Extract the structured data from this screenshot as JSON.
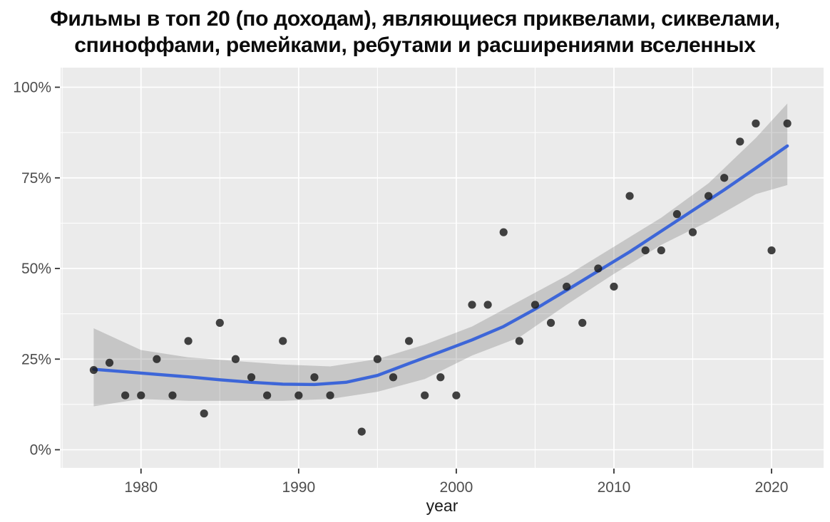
{
  "header": {
    "lines": [
      "Фильмы в топ 20 (по доходам), являющиеся приквелами, сиквелами,",
      "спиноффами, ремейками, ребутами и расширениями вселенных"
    ]
  },
  "chart_data": {
    "type": "scatter",
    "title": "Фильмы в топ 20 (по доходам), являющиеся приквелами, сиквелами, спиноффами, ремейками, ребутами и расширениями вселенных",
    "xlabel": "year",
    "ylabel": "",
    "xlim": [
      1974.9,
      2023.3
    ],
    "ylim": [
      -5,
      105.4
    ],
    "grid": true,
    "legend": "none",
    "x_ticks": [
      1980,
      1990,
      2000,
      2010,
      2020
    ],
    "x_tick_labels": [
      "1980",
      "1990",
      "2000",
      "2010",
      "2020"
    ],
    "y_ticks": [
      0,
      25,
      50,
      75,
      100
    ],
    "y_tick_labels": [
      "0%",
      "25%",
      "50%",
      "75%",
      "100%"
    ],
    "points_unit": "percent of top-20 films",
    "points": [
      [
        1977,
        22
      ],
      [
        1978,
        24
      ],
      [
        1979,
        15
      ],
      [
        1980,
        15
      ],
      [
        1981,
        25
      ],
      [
        1982,
        15
      ],
      [
        1983,
        30
      ],
      [
        1984,
        10
      ],
      [
        1985,
        35
      ],
      [
        1986,
        25
      ],
      [
        1987,
        20
      ],
      [
        1988,
        15
      ],
      [
        1989,
        30
      ],
      [
        1990,
        15
      ],
      [
        1991,
        20
      ],
      [
        1992,
        15
      ],
      [
        1994,
        5
      ],
      [
        1995,
        25
      ],
      [
        1996,
        20
      ],
      [
        1997,
        30
      ],
      [
        1998,
        15
      ],
      [
        1999,
        20
      ],
      [
        2000,
        15
      ],
      [
        2001,
        40
      ],
      [
        2002,
        40
      ],
      [
        2003,
        60
      ],
      [
        2004,
        30
      ],
      [
        2005,
        40
      ],
      [
        2006,
        35
      ],
      [
        2007,
        45
      ],
      [
        2008,
        35
      ],
      [
        2009,
        50
      ],
      [
        2010,
        45
      ],
      [
        2011,
        70
      ],
      [
        2012,
        55
      ],
      [
        2013,
        55
      ],
      [
        2014,
        65
      ],
      [
        2015,
        60
      ],
      [
        2016,
        70
      ],
      [
        2017,
        75
      ],
      [
        2018,
        85
      ],
      [
        2019,
        90
      ],
      [
        2020,
        55
      ],
      [
        2021,
        90
      ]
    ],
    "smooth_line": {
      "x": [
        1977,
        1979,
        1981,
        1983,
        1985,
        1987,
        1989,
        1991,
        1993,
        1995,
        1997,
        1999,
        2001,
        2003,
        2005,
        2007,
        2009,
        2011,
        2013,
        2015,
        2017,
        2019,
        2021
      ],
      "y": [
        22.2,
        21.5,
        20.8,
        20.1,
        19.3,
        18.6,
        18.1,
        18.0,
        18.6,
        20.5,
        23.8,
        27.0,
        30.3,
        34.0,
        38.8,
        44.0,
        49.3,
        54.6,
        60.3,
        66.0,
        71.7,
        77.7,
        83.8
      ]
    },
    "confidence_band": {
      "x": [
        1977,
        1980,
        1983,
        1986,
        1989,
        1992,
        1995,
        1998,
        2001,
        2004,
        2007,
        2010,
        2013,
        2016,
        2019,
        2021
      ],
      "upper": [
        33.5,
        27.5,
        25.5,
        24.5,
        23.5,
        23.0,
        25.0,
        29.0,
        34.0,
        41.0,
        48.0,
        56.0,
        64.0,
        73.5,
        86.0,
        95.5
      ],
      "lower": [
        12.0,
        14.0,
        13.5,
        13.5,
        13.5,
        14.0,
        16.0,
        19.5,
        26.0,
        31.0,
        40.0,
        48.5,
        56.5,
        63.0,
        70.5,
        73.0
      ]
    },
    "colors": {
      "panel_bg": "#ebebeb",
      "grid_major": "#ffffff",
      "grid_minor": "#ffffff",
      "point": "#1a1a1a",
      "smooth_line": "#3d66d8",
      "band": "rgba(105,105,105,0.28)",
      "tick_text": "#4d4d4d",
      "tick_mark": "#333333",
      "axis_title_text": "#1a1a1a",
      "title_text": "#0b0b0b"
    }
  }
}
